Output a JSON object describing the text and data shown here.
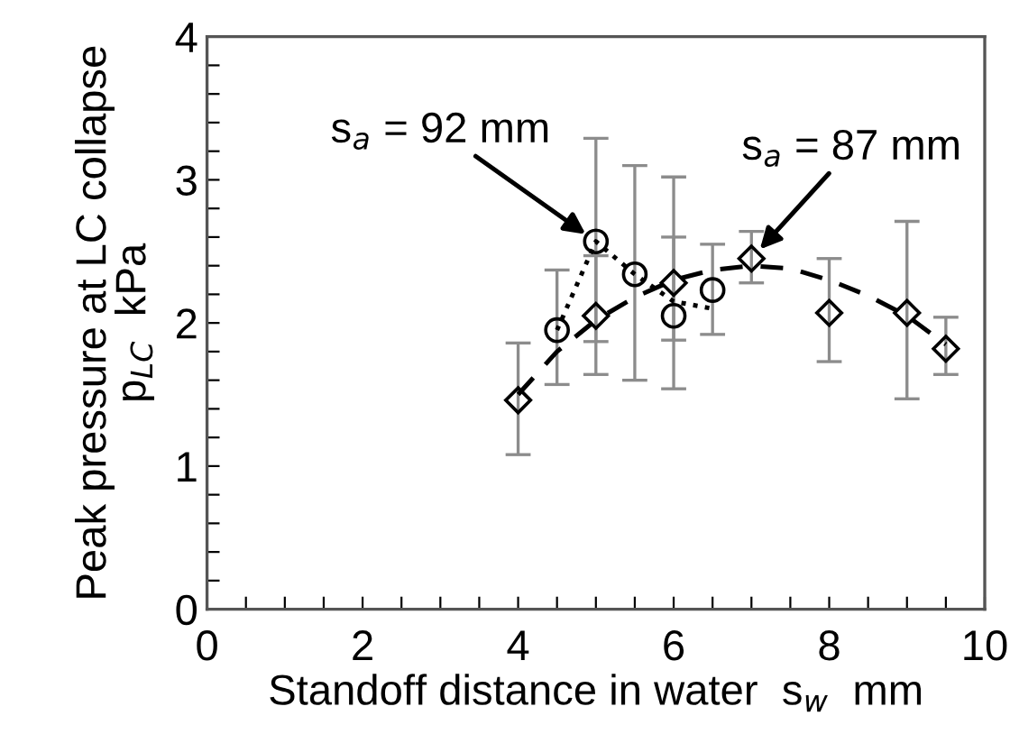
{
  "chart_data": {
    "type": "scatter",
    "xlabel": "Standoff distance in water  s$_{w}$  mm",
    "ylabel": "Peak pressure at LC collapse\np$_{LC}$  kPa",
    "xlim": [
      0,
      10
    ],
    "ylim": [
      0,
      4
    ],
    "xticks": [
      0,
      {
        "value": 0.5,
        "label": null
      },
      {
        "value": 1,
        "label": null
      },
      {
        "value": 1.5,
        "label": null
      },
      2,
      {
        "value": 2.5,
        "label": null
      },
      {
        "value": 3,
        "label": null
      },
      {
        "value": 3.5,
        "label": null
      },
      4,
      {
        "value": 4.5,
        "label": null
      },
      {
        "value": 5,
        "label": null
      },
      {
        "value": 5.5,
        "label": null
      },
      6,
      {
        "value": 6.5,
        "label": null
      },
      {
        "value": 7,
        "label": null
      },
      {
        "value": 7.5,
        "label": null
      },
      8,
      {
        "value": 8.5,
        "label": null
      },
      {
        "value": 9,
        "label": null
      },
      {
        "value": 9.5,
        "label": null
      },
      10
    ],
    "yticks": [
      0,
      {
        "value": 0.2,
        "label": null
      },
      {
        "value": 0.4,
        "label": null
      },
      {
        "value": 0.6,
        "label": null
      },
      {
        "value": 0.8,
        "label": null
      },
      1,
      {
        "value": 1.2,
        "label": null
      },
      {
        "value": 1.4,
        "label": null
      },
      {
        "value": 1.6,
        "label": null
      },
      {
        "value": 1.8,
        "label": null
      },
      2,
      {
        "value": 2.2,
        "label": null
      },
      {
        "value": 2.4,
        "label": null
      },
      {
        "value": 2.6,
        "label": null
      },
      {
        "value": 2.8,
        "label": null
      },
      3,
      {
        "value": 3.2,
        "label": null
      },
      {
        "value": 3.4,
        "label": null
      },
      {
        "value": 3.6,
        "label": null
      },
      {
        "value": 3.8,
        "label": null
      },
      4
    ],
    "grid": false,
    "legend": false,
    "series": [
      {
        "type": "line",
        "color": "#000000",
        "marker": "none",
        "line_style": "dotted",
        "x": [
          4.5,
          5,
          5.5,
          6,
          6.5
        ],
        "values": [
          1.95,
          2.57,
          2.34,
          2.15,
          2.1
        ]
      },
      {
        "type": "line",
        "color": "#000000",
        "marker": "none",
        "line_style": "dashed",
        "x": [
          4,
          4.5,
          5,
          5.5,
          6,
          6.5,
          7,
          7.5,
          8,
          8.5,
          9,
          9.5
        ],
        "values": [
          1.5,
          1.8,
          2.02,
          2.18,
          2.3,
          2.37,
          2.4,
          2.38,
          2.3,
          2.19,
          2.05,
          1.85
        ]
      },
      {
        "color": "#000000",
        "marker": "circle",
        "x": [
          4.5,
          5,
          5.5,
          6,
          6.5
        ],
        "values": [
          1.95,
          2.57,
          2.34,
          2.05,
          2.23
        ],
        "errors": [
          [
            1.57,
            2.37
          ],
          [
            1.87,
            3.29
          ],
          [
            1.6,
            3.1
          ],
          [
            1.54,
            3.02
          ],
          [
            1.92,
            2.55
          ]
        ]
      },
      {
        "color": "#000000",
        "marker": "diamond",
        "x": [
          4,
          5,
          6,
          7,
          8,
          9,
          9.5
        ],
        "values": [
          1.46,
          2.05,
          2.28,
          2.45,
          2.07,
          2.07,
          1.82
        ],
        "errors": [
          [
            1.08,
            1.86
          ],
          [
            1.64,
            2.47
          ],
          [
            1.88,
            2.6
          ],
          [
            2.28,
            2.64
          ],
          [
            1.73,
            2.45
          ],
          [
            1.47,
            2.71
          ],
          [
            1.64,
            2.04
          ]
        ]
      }
    ],
    "annotations": [
      {
        "text": "s$_{a}$ = 92 mm",
        "x": 5,
        "y": 2.57
      },
      {
        "text": "s$_{a}$ = 87 mm",
        "x": 7,
        "y": 2.45
      }
    ]
  }
}
